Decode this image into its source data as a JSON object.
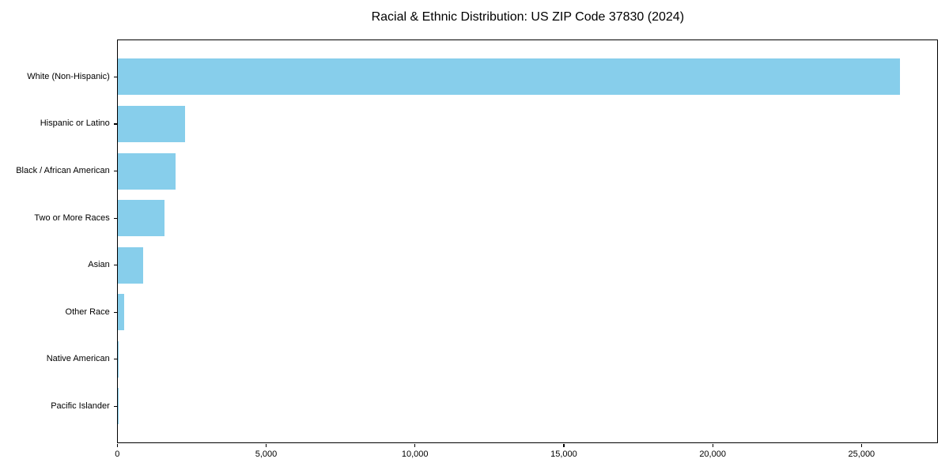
{
  "title": "Racial & Ethnic Distribution: US ZIP Code 37830 (2024)",
  "colors": {
    "bar": "#87CEEB",
    "axis": "#000000",
    "text": "#000000",
    "background": "#FFFFFF"
  },
  "chart_data": {
    "type": "bar",
    "orientation": "horizontal",
    "title": "Racial & Ethnic Distribution: US ZIP Code 37830 (2024)",
    "categories": [
      "White (Non-Hispanic)",
      "Hispanic or Latino",
      "Black / African American",
      "Two or More Races",
      "Asian",
      "Other Race",
      "Native American",
      "Pacific Islander"
    ],
    "values": [
      26260,
      2244,
      1922,
      1550,
      853,
      205,
      25,
      10
    ],
    "bar_color": "#87CEEB",
    "xlabel": "",
    "ylabel": "",
    "xlim": [
      0,
      27575
    ],
    "xticks": {
      "values": [
        0,
        5000,
        10000,
        15000,
        20000,
        25000
      ],
      "labels": [
        "0",
        "5,000",
        "10,000",
        "15,000",
        "20,000",
        "25,000"
      ]
    },
    "grid": false,
    "legend": null
  }
}
